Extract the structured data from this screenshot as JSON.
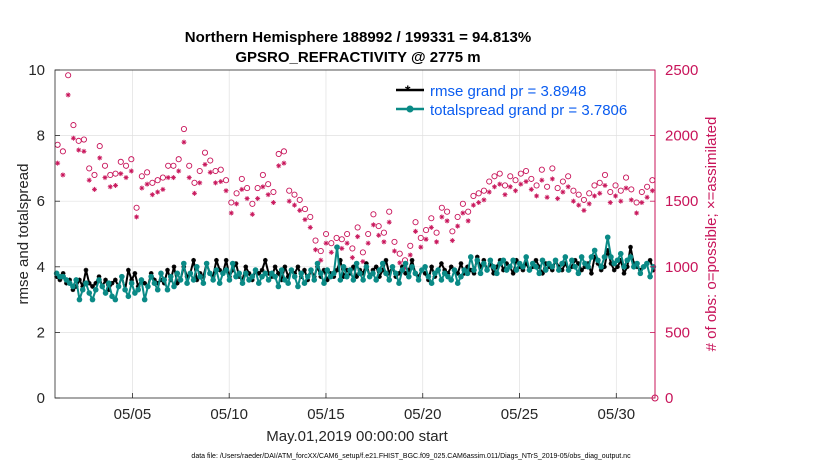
{
  "chart_data": {
    "type": "line",
    "title_line1": "Northern Hemisphere 188992 / 199331 = 94.813%",
    "title_line2": "GPSRO_REFRACTIVITY @ 2775 m",
    "xlabel": "May.01,2019 00:00:00 start",
    "ylabel_left": "rmse and totalspread",
    "ylabel_right": "# of obs: o=possible; ×=assimilated",
    "footnote": "data file: /Users/raeder/DAI/ATM_forcXX/CAM6_setup/f.e21.FHIST_BGC.f09_025.CAM6assim.011/Diags_NTrS_2019-05/obs_diag_output.nc",
    "xlim": [
      1.0,
      32.0
    ],
    "ylim_left": [
      0,
      10
    ],
    "ylim_right": [
      0,
      2500
    ],
    "x_ticks": [
      {
        "value": 5,
        "label": "05/05"
      },
      {
        "value": 10,
        "label": "05/10"
      },
      {
        "value": 15,
        "label": "05/15"
      },
      {
        "value": 20,
        "label": "05/20"
      },
      {
        "value": 25,
        "label": "05/25"
      },
      {
        "value": 30,
        "label": "05/30"
      }
    ],
    "y_ticks_left": [
      "0",
      "2",
      "4",
      "6",
      "8",
      "10"
    ],
    "y_ticks_right": [
      "0",
      "500",
      "1000",
      "1500",
      "2000",
      "2500"
    ],
    "legend": [
      "rmse grand pr = 3.8948",
      "totalspread grand pr = 3.7806"
    ],
    "series": [
      {
        "name": "rmse",
        "color": "#000000",
        "values": [
          3.7,
          3.6,
          3.8,
          3.5,
          3.6,
          3.3,
          3.4,
          3.6,
          3.4,
          3.9,
          3.5,
          3.4,
          3.5,
          3.7,
          3.4,
          3.6,
          3.3,
          3.5,
          3.6,
          3.4,
          3.7,
          3.3,
          3.9,
          3.6,
          3.8,
          3.4,
          3.6,
          3.5,
          3.4,
          3.8,
          3.6,
          3.5,
          3.6,
          3.5,
          3.9,
          3.6,
          4.0,
          3.5,
          3.6,
          4.0,
          3.7,
          3.8,
          4.2,
          3.6,
          3.8,
          3.7,
          4.1,
          3.8,
          3.7,
          4.2,
          3.9,
          3.8,
          4.2,
          3.7,
          3.9,
          4.1,
          3.7,
          3.6,
          4.0,
          3.8,
          3.6,
          3.9,
          3.8,
          3.9,
          4.2,
          3.8,
          3.7,
          4.0,
          3.8,
          3.6,
          4.0,
          3.7,
          3.9,
          3.8,
          4.0,
          3.7,
          3.9,
          3.6,
          3.9,
          3.7,
          4.0,
          3.7,
          3.9,
          3.6,
          3.8,
          3.7,
          3.9,
          4.2,
          3.7,
          3.9,
          3.8,
          4.0,
          3.7,
          3.9,
          3.8,
          4.1,
          3.7,
          3.9,
          4.0,
          3.7,
          3.9,
          4.2,
          3.8,
          4.0,
          3.7,
          3.8,
          4.0,
          3.8,
          3.9,
          4.2,
          3.8,
          3.7,
          3.9,
          3.8,
          3.6,
          4.0,
          3.7,
          3.9,
          4.1,
          3.9,
          3.8,
          4.0,
          3.9,
          3.8,
          4.1,
          3.8,
          4.0,
          3.9,
          3.8,
          4.3,
          4.0,
          4.2,
          3.9,
          4.1,
          3.8,
          4.0,
          4.2,
          3.9,
          4.1,
          4.0,
          3.8,
          4.2,
          4.0,
          3.9,
          4.1,
          3.9,
          4.0,
          4.2,
          4.0,
          3.8,
          4.1,
          4.0,
          3.9,
          4.2,
          4.0,
          3.9,
          4.1,
          3.9,
          4.0,
          4.2,
          4.1,
          3.9,
          4.0,
          4.1,
          3.8,
          4.3,
          4.1,
          3.9,
          4.0,
          4.5,
          4.1,
          3.9,
          4.0,
          4.2,
          3.8,
          4.0,
          4.6,
          4.1,
          4.0,
          3.9,
          4.0,
          4.1,
          4.2,
          3.9
        ]
      },
      {
        "name": "totalspread",
        "color": "#0a8a86",
        "values": [
          3.8,
          3.7,
          3.7,
          3.6,
          3.5,
          3.4,
          3.6,
          3.0,
          3.3,
          3.5,
          3.2,
          3.0,
          3.3,
          3.6,
          3.4,
          3.2,
          3.5,
          3.1,
          3.0,
          3.4,
          3.7,
          3.3,
          3.1,
          3.5,
          3.2,
          3.3,
          3.6,
          3.0,
          3.4,
          3.7,
          3.5,
          3.3,
          3.8,
          3.6,
          3.3,
          3.7,
          3.4,
          3.8,
          3.6,
          4.1,
          3.5,
          3.8,
          3.6,
          4.0,
          3.7,
          3.5,
          4.1,
          3.8,
          3.6,
          3.9,
          3.5,
          3.8,
          3.9,
          3.6,
          4.1,
          3.7,
          3.8,
          3.5,
          3.8,
          3.6,
          3.7,
          3.9,
          3.5,
          3.7,
          3.8,
          3.6,
          3.8,
          3.7,
          3.4,
          3.9,
          3.6,
          3.5,
          3.9,
          3.7,
          3.4,
          3.8,
          3.5,
          3.7,
          3.9,
          3.6,
          4.1,
          3.8,
          3.5,
          3.9,
          3.7,
          3.8,
          4.6,
          3.6,
          4.0,
          3.7,
          3.9,
          3.6,
          4.1,
          3.8,
          3.6,
          4.0,
          3.7,
          3.8,
          3.6,
          3.9,
          4.1,
          3.8,
          3.6,
          4.0,
          3.8,
          3.5,
          3.9,
          4.1,
          3.7,
          4.0,
          3.8,
          3.6,
          3.9,
          4.0,
          3.7,
          3.5,
          3.8,
          3.9,
          3.6,
          3.8,
          3.7,
          3.6,
          3.9,
          3.5,
          3.7,
          3.9,
          3.8,
          4.3,
          3.9,
          4.2,
          3.8,
          4.1,
          3.9,
          4.2,
          4.0,
          3.8,
          4.1,
          4.2,
          3.9,
          4.0,
          4.2,
          3.9,
          4.1,
          4.0,
          4.3,
          3.9,
          4.1,
          4.0,
          3.8,
          4.2,
          3.9,
          4.1,
          4.0,
          4.2,
          3.9,
          4.1,
          4.3,
          3.9,
          4.2,
          4.0,
          3.8,
          4.3,
          4.1,
          4.0,
          4.3,
          4.5,
          4.2,
          4.0,
          4.3,
          4.9,
          4.3,
          4.1,
          4.2,
          4.4,
          4.0,
          4.2,
          4.3,
          4.0,
          4.1,
          3.8,
          4.0,
          4.1,
          3.7,
          4.0
        ]
      }
    ],
    "obs_possible": {
      "name": "possible",
      "marker": "o",
      "color": "#c8145a",
      "values": [
        1930,
        1880,
        2460,
        2080,
        1960,
        1970,
        1750,
        1700,
        1920,
        1770,
        1700,
        1710,
        1800,
        1770,
        1820,
        1450,
        1690,
        1720,
        1640,
        1660,
        1680,
        1770,
        1770,
        1820,
        2050,
        1770,
        1640,
        1730,
        1870,
        1810,
        1730,
        1740,
        1660,
        1490,
        1560,
        1670,
        1600,
        1480,
        1600,
        1700,
        1630,
        1570,
        1860,
        1880,
        1580,
        1550,
        1510,
        1440,
        1380,
        1200,
        1120,
        1250,
        1180,
        1220,
        1210,
        1250,
        1140,
        1300,
        1110,
        1250,
        1400,
        1310,
        1260,
        1420,
        1190,
        1100,
        1050,
        1160,
        1340,
        1220,
        1280,
        1370,
        1260,
        1450,
        1420,
        1270,
        1380,
        1480,
        1420,
        1540,
        1560,
        1580,
        1650,
        1690,
        1710,
        1620,
        1690,
        1660,
        1710,
        1730,
        1670,
        1620,
        1740,
        1610,
        1750,
        1600,
        1650,
        1690,
        1580,
        1550,
        1510,
        1560,
        1620,
        1640,
        1700,
        1570,
        1620,
        1580,
        1680,
        1590,
        1490,
        1570,
        1610,
        1660
      ]
    },
    "obs_assimilated": {
      "name": "assimilated",
      "marker": "*",
      "color": "#c8145a",
      "values": [
        1790,
        1700,
        2310,
        1980,
        1890,
        1880,
        1660,
        1590,
        1830,
        1680,
        1610,
        1620,
        1710,
        1680,
        1730,
        1380,
        1600,
        1630,
        1550,
        1570,
        1590,
        1680,
        1680,
        1730,
        1950,
        1680,
        1560,
        1640,
        1780,
        1720,
        1640,
        1650,
        1580,
        1410,
        1480,
        1590,
        1520,
        1400,
        1520,
        1610,
        1550,
        1490,
        1770,
        1790,
        1500,
        1470,
        1430,
        1360,
        1300,
        1130,
        1050,
        1180,
        1110,
        1150,
        1140,
        1180,
        1070,
        1230,
        1040,
        1180,
        1320,
        1240,
        1190,
        1340,
        1120,
        1030,
        990,
        1090,
        1270,
        1150,
        1210,
        1300,
        1190,
        1380,
        1350,
        1200,
        1310,
        1410,
        1350,
        1470,
        1490,
        1510,
        1570,
        1610,
        1630,
        1550,
        1610,
        1580,
        1630,
        1650,
        1590,
        1540,
        1660,
        1530,
        1670,
        1520,
        1570,
        1610,
        1500,
        1470,
        1430,
        1480,
        1540,
        1560,
        1620,
        1490,
        1540,
        1500,
        1600,
        1510,
        1410,
        1490,
        1530,
        1580
      ]
    }
  }
}
